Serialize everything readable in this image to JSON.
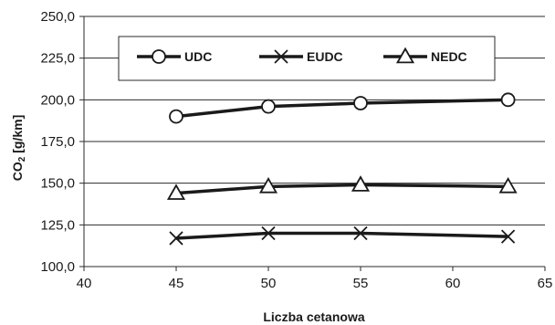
{
  "chart_data": {
    "type": "line",
    "xlabel": "Liczba cetanowa",
    "ylabel_main": "CO",
    "ylabel_sub": "2",
    "ylabel_unit": " [g/km]",
    "xlim": [
      40,
      65
    ],
    "ylim": [
      100,
      250
    ],
    "x_ticks": [
      40,
      45,
      50,
      55,
      60,
      65
    ],
    "y_ticks": [
      100,
      125,
      150,
      175,
      200,
      225,
      250
    ],
    "x_tick_labels": [
      "40",
      "45",
      "50",
      "55",
      "60",
      "65"
    ],
    "y_tick_labels": [
      "100,0",
      "125,0",
      "150,0",
      "175,0",
      "200,0",
      "225,0",
      "250,0"
    ],
    "grid": "horizontal",
    "legend_placement": "top",
    "x": [
      45,
      50,
      55,
      63
    ],
    "series": [
      {
        "name": "UDC",
        "marker": "circle",
        "values": [
          190,
          196,
          198,
          200
        ]
      },
      {
        "name": "EUDC",
        "marker": "x",
        "values": [
          117,
          120,
          120,
          118
        ]
      },
      {
        "name": "NEDC",
        "marker": "triangle",
        "values": [
          144,
          148,
          149,
          148
        ]
      }
    ]
  }
}
